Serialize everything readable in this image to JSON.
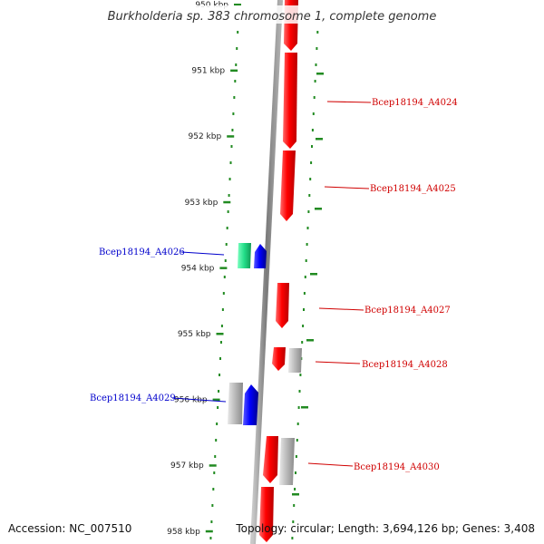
{
  "title": "Burkholderia sp. 383 chromosome 1, complete genome",
  "accession": "Accession: NC_007510",
  "topology": "Topology: circular; Length: 3,694,126 bp; Genes: 3,408",
  "ticks": [
    "950 kbp",
    "951 kbp",
    "952 kbp",
    "953 kbp",
    "954 kbp",
    "955 kbp",
    "956 kbp",
    "957 kbp",
    "958 kbp"
  ],
  "genes": [
    {
      "name": "Bcep18194_A4024",
      "color": "#ff0000"
    },
    {
      "name": "Bcep18194_A4025",
      "color": "#ff0000"
    },
    {
      "name": "Bcep18194_A4026",
      "color": "#0000cc"
    },
    {
      "name": "Bcep18194_A4027",
      "color": "#ff0000"
    },
    {
      "name": "Bcep18194_A4028",
      "color": "#ff0000"
    },
    {
      "name": "Bcep18194_A4029",
      "color": "#0000cc"
    },
    {
      "name": "Bcep18194_A4030",
      "color": "#ff0000"
    }
  ],
  "colors": {
    "forward": "#ff0000",
    "reverse": "#0000ff",
    "rna": "#22dd88",
    "other": "#b0b0b0",
    "dots": "#228b22",
    "backbone": "#8a8a8a"
  }
}
